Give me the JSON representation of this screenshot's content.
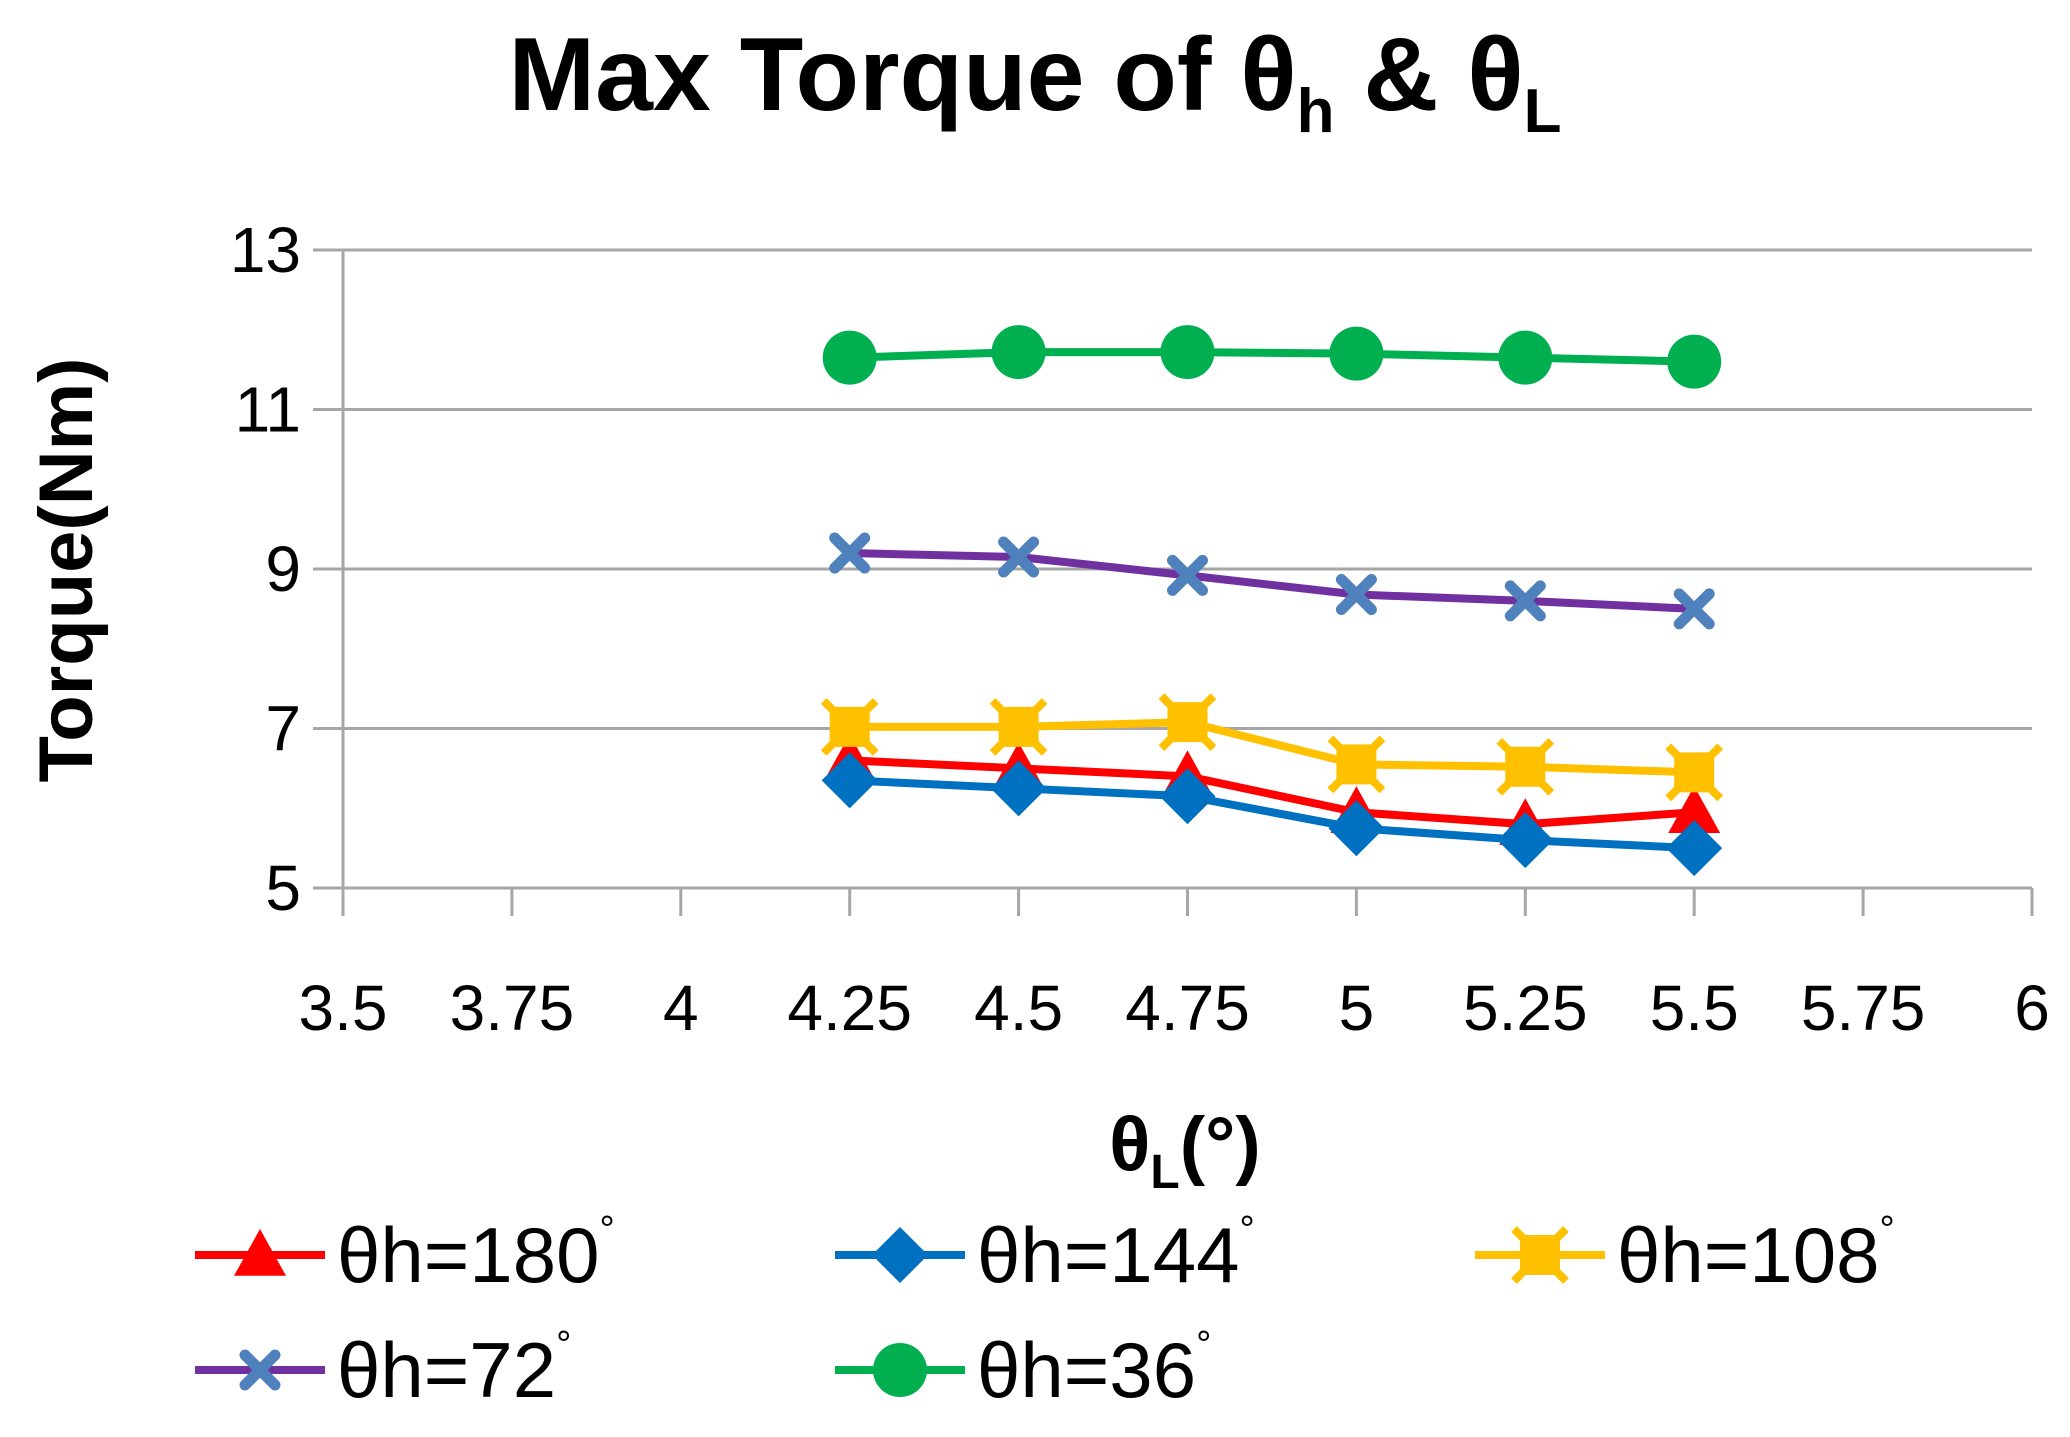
{
  "chart_data": {
    "type": "line",
    "title": {
      "prefix": "Max Torque of θ",
      "sub1": "h",
      "mid": " & θ",
      "sub2": "L"
    },
    "xlabel": {
      "prefix": "θ",
      "sub": "L",
      "suffix": "(°)"
    },
    "ylabel": "Torque(Nm)",
    "xlim": [
      3.5,
      6
    ],
    "ylim": [
      5,
      13
    ],
    "x_ticks": [
      {
        "value": 3.5,
        "label": "3.5"
      },
      {
        "value": 3.75,
        "label": "3.75"
      },
      {
        "value": 4,
        "label": "4"
      },
      {
        "value": 4.25,
        "label": "4.25"
      },
      {
        "value": 4.5,
        "label": "4.5"
      },
      {
        "value": 4.75,
        "label": "4.75"
      },
      {
        "value": 5,
        "label": "5"
      },
      {
        "value": 5.25,
        "label": "5.25"
      },
      {
        "value": 5.5,
        "label": "5.5"
      },
      {
        "value": 5.75,
        "label": "5.75"
      },
      {
        "value": 6,
        "label": "6"
      }
    ],
    "y_ticks": [
      {
        "value": 5,
        "label": "5"
      },
      {
        "value": 7,
        "label": "7"
      },
      {
        "value": 9,
        "label": "9"
      },
      {
        "value": 11,
        "label": "11"
      },
      {
        "value": 13,
        "label": "13"
      }
    ],
    "grid": true,
    "legend_position": "bottom",
    "x": [
      4.25,
      4.5,
      4.75,
      5,
      5.25,
      5.5
    ],
    "series": [
      {
        "name": "θh=180",
        "suffix": "°",
        "color": "#ff0000",
        "marker": "triangle",
        "values": [
          6.6,
          6.5,
          6.4,
          5.95,
          5.8,
          5.95
        ]
      },
      {
        "name": "θh=144",
        "suffix": "°",
        "color": "#0070c0",
        "marker": "diamond",
        "values": [
          6.35,
          6.25,
          6.15,
          5.75,
          5.6,
          5.5
        ]
      },
      {
        "name": "θh=108",
        "suffix": "°",
        "color": "#ffc000",
        "marker": "square",
        "values": [
          7.02,
          7.02,
          7.08,
          6.55,
          6.52,
          6.45
        ]
      },
      {
        "name": "θh=72",
        "suffix": "°",
        "color": "#7030a0",
        "marker_color": "#4f81bd",
        "marker": "x",
        "values": [
          9.2,
          9.15,
          8.92,
          8.68,
          8.6,
          8.5
        ]
      },
      {
        "name": "θh=36",
        "suffix": "°",
        "color": "#00b050",
        "marker": "circle",
        "values": [
          11.65,
          11.72,
          11.72,
          11.7,
          11.65,
          11.6
        ]
      }
    ]
  }
}
